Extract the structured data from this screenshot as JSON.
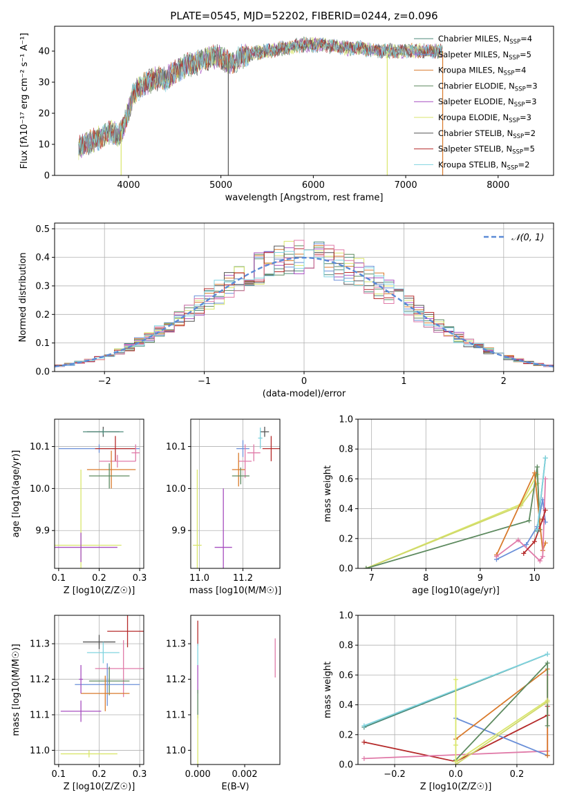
{
  "chart_data": [
    {
      "id": "spectrum",
      "type": "line",
      "title": "PLATE=0545, MJD=52202, FIBERID=0244, z=0.096",
      "xlabel": "wavelength [Angstrom, rest frame]",
      "ylabel": "Flux [fλ10⁻¹⁷ erg cm⁻² s⁻¹ A⁻¹]",
      "xlim": [
        3200,
        8600
      ],
      "ylim": [
        0,
        48
      ],
      "xticks": [
        4000,
        5000,
        6000,
        7000,
        8000
      ],
      "yticks": [
        0,
        10,
        20,
        30,
        40
      ],
      "legend_placement": "upper right",
      "grid": false,
      "continuum": {
        "x": [
          3460,
          3600,
          3700,
          3800,
          3900,
          3950,
          4000,
          4050,
          4100,
          4200,
          4300,
          4400,
          4500,
          4600,
          4700,
          4800,
          4900,
          5000,
          5100,
          5200,
          5300,
          5500,
          5700,
          5900,
          6100,
          6300,
          6500,
          6700,
          6900,
          7100,
          7300,
          7400
        ],
        "y": [
          9,
          11,
          12,
          14,
          13,
          16,
          21,
          26,
          28,
          30,
          31,
          31,
          33,
          35,
          36,
          37,
          38,
          38,
          36,
          38,
          39,
          40,
          41,
          42,
          42,
          41,
          41,
          40,
          40,
          40,
          40,
          40
        ]
      },
      "series": [
        {
          "name": "Chabrier MILES, N_SSP=4",
          "color": "#4b8a7a"
        },
        {
          "name": "Salpeter MILES, N_SSP=5",
          "color": "#6a8fd8"
        },
        {
          "name": "Kroupa MILES, N_SSP=4",
          "color": "#d97a2b"
        },
        {
          "name": "Chabrier ELODIE, N_SSP=3",
          "color": "#5d8a5f"
        },
        {
          "name": "Salpeter ELODIE, N_SSP=3",
          "color": "#a64dbf"
        },
        {
          "name": "Kroupa ELODIE, N_SSP=3",
          "color": "#d9e66b"
        },
        {
          "name": "Chabrier STELIB, N_SSP=2",
          "color": "#555555"
        },
        {
          "name": "Salpeter STELIB, N_SSP=5",
          "color": "#b52a2a"
        },
        {
          "name": "Kroupa STELIB, N_SSP=2",
          "color": "#7fd3df"
        }
      ],
      "dropouts": [
        {
          "x": 3920,
          "color": "#d9e66b"
        },
        {
          "x": 5080,
          "color": "#555555"
        },
        {
          "x": 6800,
          "color": "#d9e66b"
        },
        {
          "x": 7400,
          "color": "#d97a2b"
        }
      ]
    },
    {
      "id": "residuals",
      "type": "histogram",
      "xlabel": "(data-model)/error",
      "ylabel": "Normed distribution",
      "xlim": [
        -2.5,
        2.5
      ],
      "ylim": [
        0,
        0.52
      ],
      "xticks": [
        -2,
        -1,
        0,
        1,
        2
      ],
      "yticks": [
        0.0,
        0.1,
        0.2,
        0.3,
        0.4,
        0.5
      ],
      "grid": true,
      "legend_placement": "upper right",
      "gaussian": {
        "name": "N(0,1)",
        "mu": 0,
        "sigma": 1,
        "color": "#5b8ad6"
      },
      "bin_width": 0.1,
      "series_colors": [
        "#4b8a7a",
        "#6a8fd8",
        "#d97a2b",
        "#5d8a5f",
        "#a64dbf",
        "#d9e66b",
        "#555555",
        "#b52a2a",
        "#e07aa8",
        "#7fd3df"
      ]
    },
    {
      "id": "age-vs-Z",
      "type": "errorbar",
      "xlabel": "Z [log10(Z/Z☉)]",
      "ylabel": "age  [log10(age/yr)]",
      "xlim": [
        0.09,
        0.31
      ],
      "ylim": [
        9.81,
        10.165
      ],
      "xticks": [
        0.1,
        0.2,
        0.3
      ],
      "yticks": [
        9.9,
        10.0,
        10.1
      ],
      "grid": true,
      "points": [
        {
          "x": 0.21,
          "y": 10.135,
          "xerr": 0.04,
          "yerr": 0.012,
          "color": "#555555"
        },
        {
          "x": 0.21,
          "y": 10.135,
          "xerr": 0.05,
          "yerr": 0.006,
          "color": "#4b8a7a"
        },
        {
          "x": 0.2,
          "y": 10.095,
          "xerr": 0.1,
          "yerr": 0.01,
          "color": "#6a8fd8"
        },
        {
          "x": 0.24,
          "y": 10.095,
          "xerr": 0.05,
          "yerr": 0.03,
          "color": "#b52a2a"
        },
        {
          "x": 0.29,
          "y": 10.085,
          "xerr": 0.01,
          "yerr": 0.02,
          "color": "#e07aa8"
        },
        {
          "x": 0.245,
          "y": 10.065,
          "xerr": 0.045,
          "yerr": 0.015,
          "color": "#e07aa8"
        },
        {
          "x": 0.23,
          "y": 10.045,
          "xerr": 0.06,
          "yerr": 0.045,
          "color": "#d97a2b"
        },
        {
          "x": 0.225,
          "y": 10.03,
          "xerr": 0.05,
          "yerr": 0.03,
          "color": "#5d8a5f"
        },
        {
          "x": 0.155,
          "y": 9.865,
          "xerr": 0.1,
          "yerr": 0.18,
          "color": "#d9e66b"
        },
        {
          "x": 0.155,
          "y": 9.86,
          "xerr": 0.09,
          "yerr": 0.035,
          "color": "#a64dbf"
        }
      ]
    },
    {
      "id": "age-vs-mass",
      "type": "errorbar",
      "xlabel": "mass [log10(M/M☉)]",
      "ylabel": "",
      "xlim": [
        10.96,
        11.37
      ],
      "ylim": [
        9.81,
        10.165
      ],
      "xticks": [
        11.0,
        11.2
      ],
      "yticks": [
        9.9,
        10.0,
        10.1
      ],
      "grid": true,
      "points": [
        {
          "x": 11.3,
          "y": 10.135,
          "xerr": 0.02,
          "yerr": 0.012,
          "color": "#555555"
        },
        {
          "x": 11.28,
          "y": 10.12,
          "xerr": 0.01,
          "yerr": 0.025,
          "color": "#7fd3df"
        },
        {
          "x": 11.33,
          "y": 10.095,
          "xerr": 0.04,
          "yerr": 0.03,
          "color": "#b52a2a"
        },
        {
          "x": 11.25,
          "y": 10.085,
          "xerr": 0.03,
          "yerr": 0.02,
          "color": "#e07aa8"
        },
        {
          "x": 11.2,
          "y": 10.095,
          "xerr": 0.03,
          "yerr": 0.02,
          "color": "#6a8fd8"
        },
        {
          "x": 11.21,
          "y": 10.065,
          "xerr": 0.03,
          "yerr": 0.04,
          "color": "#e07aa8"
        },
        {
          "x": 11.18,
          "y": 10.045,
          "xerr": 0.03,
          "yerr": 0.04,
          "color": "#d97a2b"
        },
        {
          "x": 11.19,
          "y": 10.03,
          "xerr": 0.04,
          "yerr": 0.02,
          "color": "#5d8a5f"
        },
        {
          "x": 11.11,
          "y": 9.86,
          "xerr": 0.04,
          "yerr": 0.14,
          "color": "#a64dbf"
        },
        {
          "x": 10.99,
          "y": 9.865,
          "xerr": 0.02,
          "yerr": 0.18,
          "color": "#d9e66b"
        }
      ]
    },
    {
      "id": "weight-vs-age",
      "type": "line",
      "xlabel": "age  [log10(age/yr)]",
      "ylabel": "mass weight",
      "xlim": [
        6.75,
        10.35
      ],
      "ylim": [
        0,
        1.0
      ],
      "xticks": [
        7,
        8,
        9,
        10
      ],
      "yticks": [
        0.0,
        0.2,
        0.4,
        0.6,
        0.8,
        1.0
      ],
      "grid": true,
      "series": [
        {
          "color": "#d9e66b",
          "x": [
            6.9,
            9.75,
            10.05,
            10.1
          ],
          "y": [
            0.0,
            0.43,
            0.63,
            0.32
          ]
        },
        {
          "color": "#cfd86a",
          "x": [
            6.9,
            9.75,
            10.05
          ],
          "y": [
            0.0,
            0.42,
            0.57
          ]
        },
        {
          "color": "#5d8a5f",
          "x": [
            6.9,
            9.9,
            10.05,
            10.1
          ],
          "y": [
            0.0,
            0.32,
            0.68,
            0.26
          ]
        },
        {
          "color": "#d97a2b",
          "x": [
            9.3,
            10.0,
            10.15,
            10.2
          ],
          "y": [
            0.09,
            0.64,
            0.12,
            0.17
          ]
        },
        {
          "color": "#6a8fd8",
          "x": [
            9.3,
            9.85,
            10.05,
            10.15,
            10.2
          ],
          "y": [
            0.06,
            0.16,
            0.28,
            0.46,
            0.31
          ]
        },
        {
          "color": "#e07aa8",
          "x": [
            9.3,
            9.7,
            10.1,
            10.15,
            10.2
          ],
          "y": [
            0.08,
            0.19,
            0.05,
            0.08,
            0.6
          ]
        },
        {
          "color": "#b52a2a",
          "x": [
            9.8,
            10.0,
            10.15,
            10.2
          ],
          "y": [
            0.1,
            0.18,
            0.33,
            0.39
          ]
        },
        {
          "color": "#4b8a7a",
          "x": [
            10.05,
            10.2
          ],
          "y": [
            0.25,
            0.74
          ]
        },
        {
          "color": "#7fd3df",
          "x": [
            10.05,
            10.2
          ],
          "y": [
            0.26,
            0.74
          ]
        }
      ]
    },
    {
      "id": "mass-vs-Z",
      "type": "errorbar",
      "xlabel": "Z [log10(Z/Z☉)]",
      "ylabel": "mass [log10(M/M☉)]",
      "xlim": [
        0.09,
        0.31
      ],
      "ylim": [
        10.96,
        11.38
      ],
      "xticks": [
        0.1,
        0.2,
        0.3
      ],
      "yticks": [
        11.0,
        11.1,
        11.2,
        11.3
      ],
      "grid": true,
      "points": [
        {
          "x": 0.27,
          "y": 11.335,
          "xerr": 0.05,
          "yerr": 0.045,
          "color": "#b52a2a"
        },
        {
          "x": 0.2,
          "y": 11.305,
          "xerr": 0.04,
          "yerr": 0.02,
          "color": "#555555"
        },
        {
          "x": 0.21,
          "y": 11.275,
          "xerr": 0.04,
          "yerr": 0.03,
          "color": "#7fd3df"
        },
        {
          "x": 0.26,
          "y": 11.23,
          "xerr": 0.07,
          "yerr": 0.08,
          "color": "#e07aa8"
        },
        {
          "x": 0.225,
          "y": 11.195,
          "xerr": 0.05,
          "yerr": 0.04,
          "color": "#5d8a5f"
        },
        {
          "x": 0.22,
          "y": 11.185,
          "xerr": 0.08,
          "yerr": 0.06,
          "color": "#6a8fd8"
        },
        {
          "x": 0.215,
          "y": 11.16,
          "xerr": 0.06,
          "yerr": 0.05,
          "color": "#d97a2b"
        },
        {
          "x": 0.155,
          "y": 11.2,
          "xerr": 0.005,
          "yerr": 0.04,
          "color": "#a64dbf"
        },
        {
          "x": 0.155,
          "y": 11.11,
          "xerr": 0.05,
          "yerr": 0.03,
          "color": "#a64dbf"
        },
        {
          "x": 0.175,
          "y": 10.99,
          "xerr": 0.07,
          "yerr": 0.01,
          "color": "#d9e66b"
        }
      ]
    },
    {
      "id": "mass-vs-ebv",
      "type": "errorbar",
      "xlabel": "E(B-V)",
      "ylabel": "",
      "xlim": [
        -0.0003,
        0.0035
      ],
      "ylim": [
        10.96,
        11.38
      ],
      "xticks": [
        0.0,
        0.002
      ],
      "yticks": [
        11.0,
        11.1,
        11.2,
        11.3
      ],
      "grid": false,
      "points": [
        {
          "x": 0.0,
          "y": 11.33,
          "xerr": 0.0,
          "yerr": 0.035,
          "color": "#b52a2a"
        },
        {
          "x": 0.0,
          "y": 11.27,
          "xerr": 0.0,
          "yerr": 0.03,
          "color": "#7fd3df"
        },
        {
          "x": 0.0,
          "y": 11.2,
          "xerr": 0.0,
          "yerr": 0.04,
          "color": "#a64dbf"
        },
        {
          "x": 0.0,
          "y": 11.13,
          "xerr": 0.0,
          "yerr": 0.04,
          "color": "#5d8a5f"
        },
        {
          "x": 0.0,
          "y": 11.03,
          "xerr": 0.0,
          "yerr": 0.07,
          "color": "#d9e66b"
        },
        {
          "x": 0.0033,
          "y": 11.26,
          "xerr": 0.0,
          "yerr": 0.055,
          "color": "#e07aa8"
        }
      ]
    },
    {
      "id": "weight-vs-Z",
      "type": "line",
      "xlabel": "Z [log10(Z/Z☉)]",
      "ylabel": "mass weight",
      "xlim": [
        -0.32,
        0.32
      ],
      "ylim": [
        0,
        1.0
      ],
      "xticks": [
        -0.2,
        0.0,
        0.2
      ],
      "yticks": [
        0.0,
        0.2,
        0.4,
        0.6,
        0.8,
        1.0
      ],
      "grid": true,
      "series": [
        {
          "color": "#4b8a7a",
          "x": [
            -0.3,
            0.3
          ],
          "y": [
            0.25,
            0.74
          ]
        },
        {
          "color": "#7fd3df",
          "x": [
            -0.3,
            0.3
          ],
          "y": [
            0.26,
            0.74
          ]
        },
        {
          "color": "#b52a2a",
          "x": [
            -0.3,
            0.0,
            0.3,
            0.3
          ],
          "y": [
            0.15,
            0.02,
            0.33,
            0.39
          ]
        },
        {
          "color": "#e07aa8",
          "x": [
            -0.3,
            0.3,
            0.3
          ],
          "y": [
            0.04,
            0.09,
            0.6
          ]
        },
        {
          "color": "#6a8fd8",
          "x": [
            0.0,
            0.3
          ],
          "y": [
            0.31,
            0.06
          ]
        },
        {
          "color": "#d97a2b",
          "x": [
            0.0,
            0.3,
            0.3
          ],
          "y": [
            0.17,
            0.64,
            0.06
          ]
        },
        {
          "color": "#5d8a5f",
          "x": [
            0.0,
            0.3,
            0.3
          ],
          "y": [
            0.03,
            0.68,
            0.26
          ]
        },
        {
          "color": "#d9e66b",
          "x": [
            0.0,
            0.0,
            0.0,
            0.3
          ],
          "y": [
            0.57,
            0.13,
            0.02,
            0.43
          ]
        },
        {
          "color": "#cfd86a",
          "x": [
            0.0,
            0.3
          ],
          "y": [
            0.0,
            0.42
          ]
        }
      ]
    }
  ]
}
